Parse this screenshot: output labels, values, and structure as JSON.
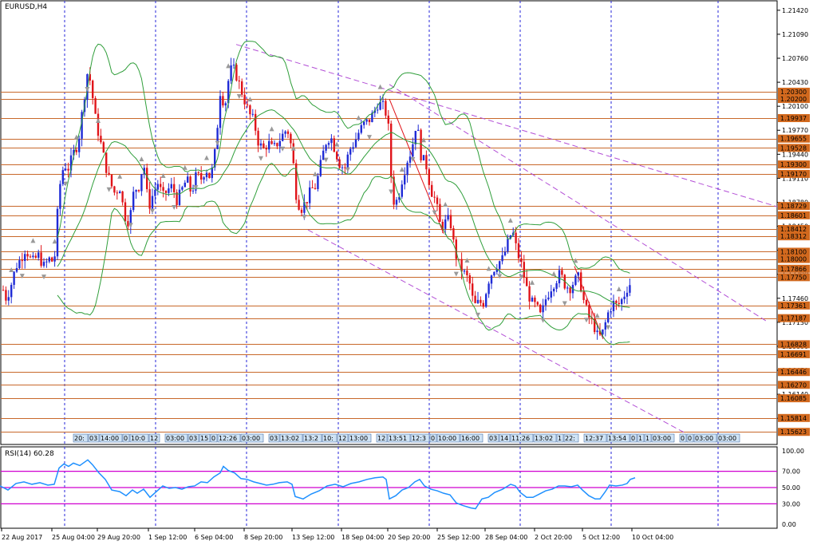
{
  "chart_data": {
    "type": "candlestick",
    "symbol_label": "EURUSD,H4",
    "indicator_label": "RSI(14) 60.28",
    "colors": {
      "bull": "#1f2bd6",
      "bear": "#e0141a",
      "level_line": "#c8682a",
      "level_tag": "#d2691e",
      "grid": "#2424d8",
      "bands": "#2f9e3a",
      "trend": "#b34fd6",
      "rsi": "#1e90ff",
      "rsi_level": "#d000d0",
      "fractal": "#9a9a9a"
    },
    "price_axis": {
      "range": [
        1.1545,
        1.2155
      ],
      "ticks": [
        "1.21420",
        "1.21090",
        "1.20760",
        "1.20430",
        "1.20100",
        "1.19770",
        "1.19440",
        "1.19110",
        "1.18780",
        "1.18450",
        "1.18120",
        "1.17790",
        "1.17460",
        "1.17130",
        "1.16800",
        "1.16470",
        "1.16140",
        "1.15810"
      ]
    },
    "levels": [
      {
        "value": 1.203,
        "label": "1.20300"
      },
      {
        "value": 1.202,
        "label": "1.20200"
      },
      {
        "value": 1.19937,
        "label": "1.19937"
      },
      {
        "value": 1.19655,
        "label": "1.19655"
      },
      {
        "value": 1.19528,
        "label": "1.19528"
      },
      {
        "value": 1.193,
        "label": "1.19300"
      },
      {
        "value": 1.1917,
        "label": "1.19170"
      },
      {
        "value": 1.18729,
        "label": "1.18729"
      },
      {
        "value": 1.18601,
        "label": "1.18601"
      },
      {
        "value": 1.18412,
        "label": "1.18412"
      },
      {
        "value": 1.18312,
        "label": "1.18312"
      },
      {
        "value": 1.181,
        "label": "1.18100"
      },
      {
        "value": 1.18,
        "label": "1.18000"
      },
      {
        "value": 1.17866,
        "label": "1.17866"
      },
      {
        "value": 1.1775,
        "label": "1.17750"
      },
      {
        "value": 1.17361,
        "label": "1.17361"
      },
      {
        "value": 1.17187,
        "label": "1.17187"
      },
      {
        "value": 1.16828,
        "label": "1.16828"
      },
      {
        "value": 1.16691,
        "label": "1.16691"
      },
      {
        "value": 1.16446,
        "label": "1.16446"
      },
      {
        "value": 1.1627,
        "label": "1.16270"
      },
      {
        "value": 1.16085,
        "label": "1.16085"
      },
      {
        "value": 1.15814,
        "label": "1.15814"
      },
      {
        "value": 1.15623,
        "label": "1.15623"
      }
    ],
    "rsi_axis": {
      "range": [
        0,
        100
      ],
      "ticks": [
        "100.00",
        "70.00",
        "50.00",
        "30.00",
        "0.00"
      ],
      "levels": [
        70,
        50,
        30
      ]
    },
    "time_labels": [
      "22 Aug 2017",
      "25 Aug 04:00",
      "29 Aug 20:00",
      "1 Sep 12:00",
      "6 Sep 04:00",
      "8 Sep 20:00",
      "13 Sep 12:00",
      "18 Sep 04:00",
      "20 Sep 20:00",
      "25 Sep 12:00",
      "28 Sep 04:00",
      "2 Oct 20:00",
      "5 Oct 12:00",
      "10 Oct 04:00"
    ],
    "event_labels": [
      "20:",
      "03",
      "14:00",
      "0",
      "10:0",
      "12",
      "03:00",
      "03",
      "15",
      "0",
      "12:26",
      "03:00",
      "03",
      "13:02",
      "13:2",
      "10:",
      "12",
      "13:00",
      "12",
      "13:51",
      "12:3",
      "0",
      "10:00",
      "16:00",
      "03",
      "14",
      "11:26",
      "13:02",
      "1",
      "22:",
      "12:37",
      "13:54",
      "0",
      "1",
      "1",
      "03:00",
      "0",
      "0",
      "03:00",
      "03:00"
    ],
    "close_path": [
      [
        0,
        1.177
      ],
      [
        8,
        1.1745
      ],
      [
        14,
        1.1765
      ],
      [
        20,
        1.179
      ],
      [
        26,
        1.18
      ],
      [
        32,
        1.1815
      ],
      [
        40,
        1.1795
      ],
      [
        48,
        1.1805
      ],
      [
        55,
        1.179
      ],
      [
        62,
        1.18
      ],
      [
        68,
        1.1795
      ],
      [
        74,
        1.1895
      ],
      [
        80,
        1.193
      ],
      [
        86,
        1.1925
      ],
      [
        92,
        1.1945
      ],
      [
        98,
        1.196
      ],
      [
        104,
        1.201
      ],
      [
        110,
        1.206
      ],
      [
        114,
        1.204
      ],
      [
        120,
        1.199
      ],
      [
        126,
        1.196
      ],
      [
        132,
        1.193
      ],
      [
        138,
        1.1905
      ],
      [
        144,
        1.189
      ],
      [
        150,
        1.19
      ],
      [
        156,
        1.186
      ],
      [
        162,
        1.185
      ],
      [
        168,
        1.1895
      ],
      [
        174,
        1.19
      ],
      [
        180,
        1.1935
      ],
      [
        186,
        1.187
      ],
      [
        192,
        1.189
      ],
      [
        198,
        1.1905
      ],
      [
        204,
        1.1885
      ],
      [
        210,
        1.1895
      ],
      [
        216,
        1.19
      ],
      [
        222,
        1.188
      ],
      [
        228,
        1.1895
      ],
      [
        234,
        1.191
      ],
      [
        240,
        1.189
      ],
      [
        246,
        1.1915
      ],
      [
        252,
        1.191
      ],
      [
        258,
        1.1925
      ],
      [
        264,
        1.191
      ],
      [
        270,
        1.195
      ],
      [
        276,
        1.203
      ],
      [
        282,
        1.201
      ],
      [
        288,
        1.206
      ],
      [
        294,
        1.206
      ],
      [
        300,
        1.204
      ],
      [
        306,
        1.202
      ],
      [
        312,
        1.2
      ],
      [
        318,
        1.199
      ],
      [
        324,
        1.196
      ],
      [
        330,
        1.195
      ],
      [
        336,
        1.196
      ],
      [
        342,
        1.195
      ],
      [
        348,
        1.196
      ],
      [
        354,
        1.197
      ],
      [
        360,
        1.198
      ],
      [
        366,
        1.195
      ],
      [
        372,
        1.188
      ],
      [
        378,
        1.187
      ],
      [
        384,
        1.188
      ],
      [
        390,
        1.1895
      ],
      [
        396,
        1.19
      ],
      [
        402,
        1.193
      ],
      [
        408,
        1.196
      ],
      [
        414,
        1.197
      ],
      [
        420,
        1.195
      ],
      [
        426,
        1.193
      ],
      [
        432,
        1.1925
      ],
      [
        438,
        1.195
      ],
      [
        444,
        1.196
      ],
      [
        450,
        1.1975
      ],
      [
        456,
        1.1985
      ],
      [
        462,
        1.199
      ],
      [
        468,
        1.2
      ],
      [
        474,
        1.2015
      ],
      [
        480,
        1.201
      ],
      [
        486,
        1.1995
      ],
      [
        492,
        1.188
      ],
      [
        498,
        1.188
      ],
      [
        504,
        1.191
      ],
      [
        510,
        1.1935
      ],
      [
        516,
        1.195
      ],
      [
        522,
        1.199
      ],
      [
        528,
        1.194
      ],
      [
        534,
        1.193
      ],
      [
        540,
        1.1895
      ],
      [
        546,
        1.188
      ],
      [
        552,
        1.1845
      ],
      [
        558,
        1.185
      ],
      [
        564,
        1.1855
      ],
      [
        570,
        1.181
      ],
      [
        576,
        1.179
      ],
      [
        582,
        1.178
      ],
      [
        588,
        1.177
      ],
      [
        594,
        1.1735
      ],
      [
        600,
        1.174
      ],
      [
        606,
        1.174
      ],
      [
        612,
        1.177
      ],
      [
        618,
        1.1785
      ],
      [
        624,
        1.1795
      ],
      [
        630,
        1.18
      ],
      [
        636,
        1.182
      ],
      [
        642,
        1.184
      ],
      [
        648,
        1.181
      ],
      [
        654,
        1.179
      ],
      [
        660,
        1.176
      ],
      [
        666,
        1.174
      ],
      [
        672,
        1.1735
      ],
      [
        678,
        1.172
      ],
      [
        684,
        1.1745
      ],
      [
        690,
        1.176
      ],
      [
        696,
        1.177
      ],
      [
        702,
        1.178
      ],
      [
        708,
        1.1765
      ],
      [
        714,
        1.176
      ],
      [
        720,
        1.177
      ],
      [
        726,
        1.1775
      ],
      [
        732,
        1.174
      ],
      [
        738,
        1.172
      ],
      [
        744,
        1.171
      ],
      [
        750,
        1.169
      ],
      [
        756,
        1.17
      ],
      [
        762,
        1.1725
      ],
      [
        768,
        1.174
      ],
      [
        774,
        1.1735
      ],
      [
        780,
        1.1745
      ],
      [
        786,
        1.176
      ],
      [
        792,
        1.177
      ]
    ],
    "rsi_path": [
      [
        0,
        52
      ],
      [
        10,
        47
      ],
      [
        20,
        55
      ],
      [
        30,
        57
      ],
      [
        40,
        54
      ],
      [
        50,
        56
      ],
      [
        60,
        53
      ],
      [
        68,
        54
      ],
      [
        74,
        74
      ],
      [
        80,
        79
      ],
      [
        86,
        76
      ],
      [
        92,
        80
      ],
      [
        100,
        77
      ],
      [
        110,
        84
      ],
      [
        116,
        78
      ],
      [
        124,
        68
      ],
      [
        132,
        60
      ],
      [
        140,
        47
      ],
      [
        150,
        45
      ],
      [
        158,
        40
      ],
      [
        166,
        47
      ],
      [
        172,
        43
      ],
      [
        180,
        48
      ],
      [
        188,
        38
      ],
      [
        196,
        45
      ],
      [
        204,
        52
      ],
      [
        212,
        49
      ],
      [
        220,
        50
      ],
      [
        228,
        48
      ],
      [
        236,
        51
      ],
      [
        244,
        52
      ],
      [
        252,
        57
      ],
      [
        260,
        56
      ],
      [
        268,
        63
      ],
      [
        276,
        68
      ],
      [
        280,
        76
      ],
      [
        286,
        71
      ],
      [
        294,
        68
      ],
      [
        302,
        61
      ],
      [
        310,
        60
      ],
      [
        318,
        57
      ],
      [
        326,
        55
      ],
      [
        334,
        53
      ],
      [
        342,
        54
      ],
      [
        350,
        56
      ],
      [
        360,
        57
      ],
      [
        366,
        54
      ],
      [
        370,
        39
      ],
      [
        380,
        36
      ],
      [
        390,
        42
      ],
      [
        400,
        46
      ],
      [
        410,
        52
      ],
      [
        420,
        54
      ],
      [
        430,
        51
      ],
      [
        440,
        55
      ],
      [
        450,
        57
      ],
      [
        460,
        60
      ],
      [
        470,
        62
      ],
      [
        480,
        63
      ],
      [
        484,
        60
      ],
      [
        488,
        36
      ],
      [
        496,
        40
      ],
      [
        504,
        47
      ],
      [
        512,
        50
      ],
      [
        520,
        57
      ],
      [
        526,
        60
      ],
      [
        532,
        52
      ],
      [
        540,
        48
      ],
      [
        548,
        46
      ],
      [
        556,
        43
      ],
      [
        564,
        41
      ],
      [
        572,
        31
      ],
      [
        580,
        28
      ],
      [
        590,
        25
      ],
      [
        596,
        24
      ],
      [
        604,
        36
      ],
      [
        612,
        38
      ],
      [
        620,
        44
      ],
      [
        630,
        48
      ],
      [
        640,
        54
      ],
      [
        646,
        52
      ],
      [
        652,
        44
      ],
      [
        660,
        38
      ],
      [
        668,
        38
      ],
      [
        676,
        42
      ],
      [
        684,
        46
      ],
      [
        692,
        48
      ],
      [
        700,
        52
      ],
      [
        708,
        52
      ],
      [
        716,
        51
      ],
      [
        724,
        53
      ],
      [
        730,
        47
      ],
      [
        738,
        40
      ],
      [
        746,
        36
      ],
      [
        752,
        36
      ],
      [
        758,
        44
      ],
      [
        764,
        53
      ],
      [
        772,
        52
      ],
      [
        780,
        53
      ],
      [
        786,
        55
      ],
      [
        790,
        60
      ],
      [
        796,
        62
      ]
    ]
  }
}
